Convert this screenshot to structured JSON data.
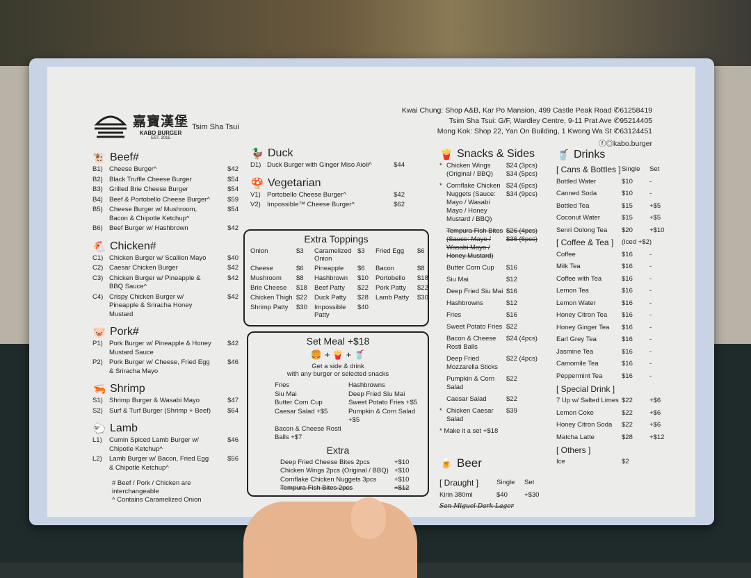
{
  "header": {
    "logo_cn": "嘉寶漢堡",
    "logo_en": "KABO BURGER",
    "logo_est": "EST. 2015",
    "branch": "Tsim Sha Tsui",
    "addresses": [
      {
        "text": "Kwai Chung: Shop A&B, Kar Po Mansion, 499 Castle Peak Road",
        "phone": "61258419"
      },
      {
        "text": "Tsim Sha Tsui: G/F, Wardley Centre, 9-11 Prat Ave",
        "phone": "95214405"
      },
      {
        "text": "Mong Kok: Shop 22, Yan On Building, 1 Kwong Wa St",
        "phone": "63124451"
      }
    ],
    "social": "kabo.burger"
  },
  "beef": {
    "title": "Beef#",
    "icon": "cow-icon",
    "items": [
      {
        "code": "B1)",
        "name": "Cheese Burger^",
        "price": "$42"
      },
      {
        "code": "B2)",
        "name": "Black Truffle Cheese Burger",
        "price": "$54"
      },
      {
        "code": "B3)",
        "name": "Grilled Brie Cheese Burger",
        "price": "$54"
      },
      {
        "code": "B4)",
        "name": "Beef & Portobello Cheese Burger^",
        "price": "$59"
      },
      {
        "code": "B5)",
        "name": "Cheese Burger w/ Mushroom, Bacon & Chipotle Ketchup^",
        "price": "$54"
      },
      {
        "code": "B6)",
        "name": "Beef Burger w/ Hashbrown",
        "price": "$42"
      }
    ]
  },
  "chicken": {
    "title": "Chicken#",
    "icon": "chicken-icon",
    "items": [
      {
        "code": "C1)",
        "name": "Chicken Burger w/ Scallion Mayo",
        "price": "$40"
      },
      {
        "code": "C2)",
        "name": "Caesar Chicken Burger",
        "price": "$42"
      },
      {
        "code": "C3)",
        "name": "Chicken Burger w/ Pineapple & BBQ Sauce^",
        "price": "$42"
      },
      {
        "code": "C4)",
        "name": "Crispy Chicken Burger w/ Pineapple & Sriracha Honey Mustard",
        "price": "$42"
      }
    ]
  },
  "pork": {
    "title": "Pork#",
    "icon": "pig-icon",
    "items": [
      {
        "code": "P1)",
        "name": "Pork Burger w/ Pineapple & Honey Mustard Sauce",
        "price": "$42"
      },
      {
        "code": "P2)",
        "name": "Pork Burger w/ Cheese, Fried Egg & Sriracha Mayo",
        "price": "$46"
      }
    ]
  },
  "shrimp": {
    "title": "Shrimp",
    "icon": "shrimp-icon",
    "items": [
      {
        "code": "S1)",
        "name": "Shrimp Burger & Wasabi Mayo",
        "price": "$47"
      },
      {
        "code": "S2)",
        "name": "Surf & Turf Burger (Shrimp + Beef)",
        "price": "$64"
      }
    ]
  },
  "lamb": {
    "title": "Lamb",
    "icon": "lamb-icon",
    "items": [
      {
        "code": "L1)",
        "name": "Cumin Spiced Lamb Burger w/ Chipotle Ketchup^",
        "price": "$46"
      },
      {
        "code": "L2)",
        "name": "Lamb Burger w/ Bacon, Fried Egg & Chipotle Ketchup^",
        "price": "$56"
      }
    ]
  },
  "notes": [
    "# Beef / Pork / Chicken are interchangeable",
    "^ Contains Caramelized Onion"
  ],
  "duck": {
    "title": "Duck",
    "icon": "duck-icon",
    "items": [
      {
        "code": "D1)",
        "name": "Duck Burger with Ginger Miso Aioli^",
        "price": "$44"
      }
    ]
  },
  "vegetarian": {
    "title": "Vegetarian",
    "icon": "mushroom-icon",
    "items": [
      {
        "code": "V1)",
        "name": "Portobello Cheese Burger^",
        "price": "$42"
      },
      {
        "code": "V2)",
        "name": "Impossible™ Cheese Burger^",
        "price": "$62"
      }
    ]
  },
  "toppings": {
    "title": "Extra Toppings",
    "items": [
      [
        "Onion",
        "$3",
        "Caramelized Onion",
        "$3",
        "Fried Egg",
        "$6"
      ],
      [
        "Cheese",
        "$6",
        "Pineapple",
        "$6",
        "Bacon",
        "$8"
      ],
      [
        "Mushroom",
        "$8",
        "Hashbrown",
        "$10",
        "Portobello",
        "$18"
      ],
      [
        "Brie Cheese",
        "$18",
        "Beef Patty",
        "$22",
        "Pork Patty",
        "$22"
      ],
      [
        "Chicken Thigh",
        "$22",
        "Duck Patty",
        "$28",
        "Lamb Patty",
        "$30"
      ],
      [
        "Shrimp Patty",
        "$30",
        "Impossible Patty",
        "$40",
        "",
        ""
      ]
    ]
  },
  "set_meal": {
    "title": "Set Meal +$18",
    "desc1": "Get a side & drink",
    "desc2": "with any burger or selected snacks",
    "sides": [
      [
        "Fries",
        "Hashbrowns"
      ],
      [
        "Siu Mai",
        "Deep Fried Siu Mai"
      ],
      [
        "Butter Corn Cup",
        "Sweet Potato Fries +$5"
      ],
      [
        "Caesar Salad +$5",
        "Pumpkin & Corn Salad +$5"
      ],
      [
        "Bacon & Cheese Rosti Balls +$7",
        ""
      ]
    ],
    "extra_title": "Extra",
    "extras": [
      {
        "name": "Deep Fried Cheese Bites 2pcs",
        "price": "+$10",
        "struck": false
      },
      {
        "name": "Chicken Wings 2pcs (Original / BBQ)",
        "price": "+$10",
        "struck": false
      },
      {
        "name": "Cornflake Chicken Nuggets 3pcs",
        "price": "+$10",
        "struck": false
      },
      {
        "name": "Tempura Fish Bites 2pcs",
        "price": "+$12",
        "struck": true
      }
    ]
  },
  "snacks": {
    "title": "Snacks & Sides",
    "icon": "fries-icon",
    "items": [
      {
        "star": "*",
        "name": "Chicken Wings (Original / BBQ)",
        "price": "$24 (3pcs) $34 (5pcs)",
        "struck": false
      },
      {
        "star": "*",
        "name": "Cornflake Chicken Nuggets (Sauce: Mayo / Wasabi Mayo / Honey Mustard / BBQ)",
        "price": "$24 (6pcs) $34 (9pcs)",
        "struck": false
      },
      {
        "star": "",
        "name": "Tempura Fish Bites (Sauce: Mayo / Wasabi Mayo / Honey Mustard)",
        "price": "$26 (4pcs) $36 (6pcs)",
        "struck": true
      },
      {
        "star": "",
        "name": "Butter Corn Cup",
        "price": "$16",
        "struck": false
      },
      {
        "star": "",
        "name": "Siu Mai",
        "price": "$12",
        "struck": false
      },
      {
        "star": "",
        "name": "Deep Fried Siu Mai",
        "price": "$16",
        "struck": false
      },
      {
        "star": "",
        "name": "Hashbrowns",
        "price": "$12",
        "struck": false
      },
      {
        "star": "",
        "name": "Fries",
        "price": "$16",
        "struck": false
      },
      {
        "star": "",
        "name": "Sweet Potato Fries",
        "price": "$22",
        "struck": false
      },
      {
        "star": "",
        "name": "Bacon & Cheese Rosti Balls",
        "price": "$24 (4pcs)",
        "struck": false
      },
      {
        "star": "",
        "name": "Deep Fried Mozzarella Sticks",
        "price": "$22 (4pcs)",
        "struck": false
      },
      {
        "star": "",
        "name": "Pumpkin & Corn Salad",
        "price": "$22",
        "struck": false
      },
      {
        "star": "",
        "name": "Caesar Salad",
        "price": "$22",
        "struck": false
      },
      {
        "star": "*",
        "name": "Chicken Caesar Salad",
        "price": "$39",
        "struck": false
      }
    ],
    "set_note": "* Make it a set +$18"
  },
  "drinks": {
    "title": "Drinks",
    "icon": "cup-icon",
    "cans": {
      "title": "[ Cans & Bottles ]",
      "col1": "Single",
      "col2": "Set",
      "items": [
        [
          "Bottled Water",
          "$10",
          "-"
        ],
        [
          "Canned Soda",
          "$10",
          "-"
        ],
        [
          "Bottled Tea",
          "$15",
          "+$5"
        ],
        [
          "Coconut Water",
          "$15",
          "+$5"
        ],
        [
          "Senri Oolong Tea",
          "$20",
          "+$10"
        ]
      ]
    },
    "coffee": {
      "title": "[ Coffee & Tea ]",
      "note": "(Iced +$2)",
      "items": [
        [
          "Coffee",
          "$16",
          "-"
        ],
        [
          "Milk Tea",
          "$16",
          "-"
        ],
        [
          "Coffee with Tea",
          "$16",
          "-"
        ],
        [
          "Lemon Tea",
          "$16",
          "-"
        ],
        [
          "Lemon Water",
          "$16",
          "-"
        ],
        [
          "Honey Citron Tea",
          "$16",
          "-"
        ],
        [
          "Honey Ginger Tea",
          "$16",
          "-"
        ],
        [
          "Earl Grey Tea",
          "$16",
          "-"
        ],
        [
          "Jasmine Tea",
          "$16",
          "-"
        ],
        [
          "Camomile Tea",
          "$16",
          "-"
        ],
        [
          "Peppermint Tea",
          "$16",
          "-"
        ]
      ]
    },
    "special": {
      "title": "[ Special Drink ]",
      "items": [
        [
          "7 Up w/ Salted Limes",
          "$22",
          "+$6"
        ],
        [
          "Lemon Coke",
          "$22",
          "+$6"
        ],
        [
          "Honey Citron Soda",
          "$22",
          "+$6"
        ],
        [
          "Matcha Latte",
          "$28",
          "+$12"
        ]
      ]
    },
    "others": {
      "title": "[ Others ]",
      "items": [
        [
          "Ice",
          "$2",
          ""
        ]
      ]
    }
  },
  "beer": {
    "title": "Beer",
    "icon": "beer-mug-icon",
    "draught": "[ Draught ]",
    "col1": "Single",
    "col2": "Set",
    "items": [
      [
        "Kirin 380ml",
        "$40",
        "+$30"
      ]
    ],
    "crossed_out": "San Miguel Dark Lager"
  }
}
